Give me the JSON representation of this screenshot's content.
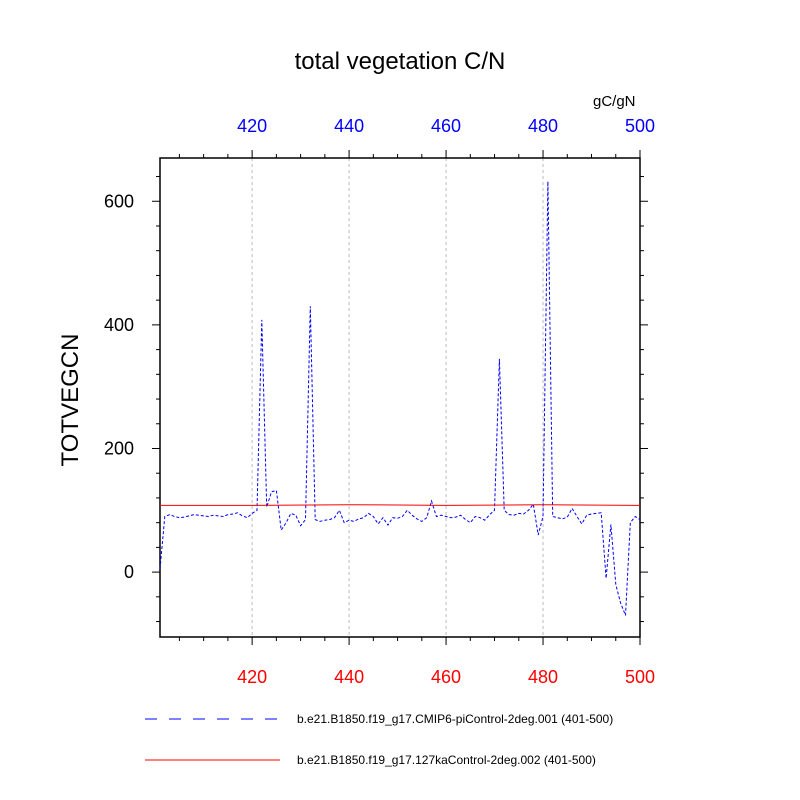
{
  "chart_data": {
    "type": "line",
    "title": "total vegetation C/N",
    "ylabel": "TOTVEGCN",
    "top_axis_units": "gC/gN",
    "xlim": [
      401,
      500
    ],
    "ylim": [
      -105,
      670
    ],
    "x_ticks": [
      420,
      440,
      460,
      480,
      500
    ],
    "y_ticks": [
      0,
      200,
      400,
      600
    ],
    "grid": "vertical dashed at major x ticks",
    "legend_placement": "bottom",
    "colors": {
      "bottom_ticks": "#ff0000",
      "top_ticks": "#0000ff"
    },
    "series": [
      {
        "name": "b.e21.B1850.f19_g17.CMIP6-piControl-2deg.001 (401-500)",
        "color": "#0000ff",
        "style": "dashed",
        "x": [
          401,
          402,
          403,
          404,
          405,
          406,
          407,
          408,
          409,
          410,
          411,
          412,
          413,
          414,
          415,
          416,
          417,
          418,
          419,
          420,
          421,
          422,
          423,
          424,
          425,
          426,
          427,
          428,
          429,
          430,
          431,
          432,
          433,
          434,
          435,
          436,
          437,
          438,
          439,
          440,
          441,
          442,
          443,
          444,
          445,
          446,
          447,
          448,
          449,
          450,
          451,
          452,
          453,
          454,
          455,
          456,
          457,
          458,
          459,
          460,
          461,
          462,
          463,
          464,
          465,
          466,
          467,
          468,
          469,
          470,
          471,
          472,
          473,
          474,
          475,
          476,
          477,
          478,
          479,
          480,
          481,
          482,
          483,
          484,
          485,
          486,
          487,
          488,
          489,
          490,
          491,
          492,
          493,
          494,
          495,
          496,
          497,
          498,
          499,
          500
        ],
        "values": [
          5,
          90,
          93,
          90,
          88,
          89,
          91,
          93,
          92,
          91,
          90,
          92,
          91,
          90,
          93,
          94,
          96,
          91,
          88,
          95,
          100,
          408,
          105,
          130,
          132,
          68,
          80,
          95,
          92,
          75,
          85,
          430,
          85,
          82,
          84,
          85,
          88,
          100,
          80,
          84,
          82,
          86,
          88,
          95,
          90,
          78,
          88,
          76,
          88,
          87,
          90,
          100,
          92,
          86,
          82,
          88,
          115,
          90,
          92,
          90,
          88,
          89,
          92,
          85,
          80,
          90,
          88,
          84,
          93,
          100,
          345,
          100,
          93,
          92,
          95,
          94,
          100,
          110,
          60,
          90,
          632,
          90,
          88,
          86,
          89,
          103,
          90,
          78,
          92,
          94,
          95,
          96,
          -10,
          77,
          -20,
          -50,
          -70,
          80,
          90,
          85
        ]
      },
      {
        "name": "b.e21.B1850.f19_g17.127kaControl-2deg.002 (401-500)",
        "color": "#ff0000",
        "style": "solid",
        "x": [
          401,
          420,
          440,
          460,
          480,
          500
        ],
        "values": [
          108,
          108,
          109,
          108,
          109,
          108
        ]
      }
    ]
  }
}
